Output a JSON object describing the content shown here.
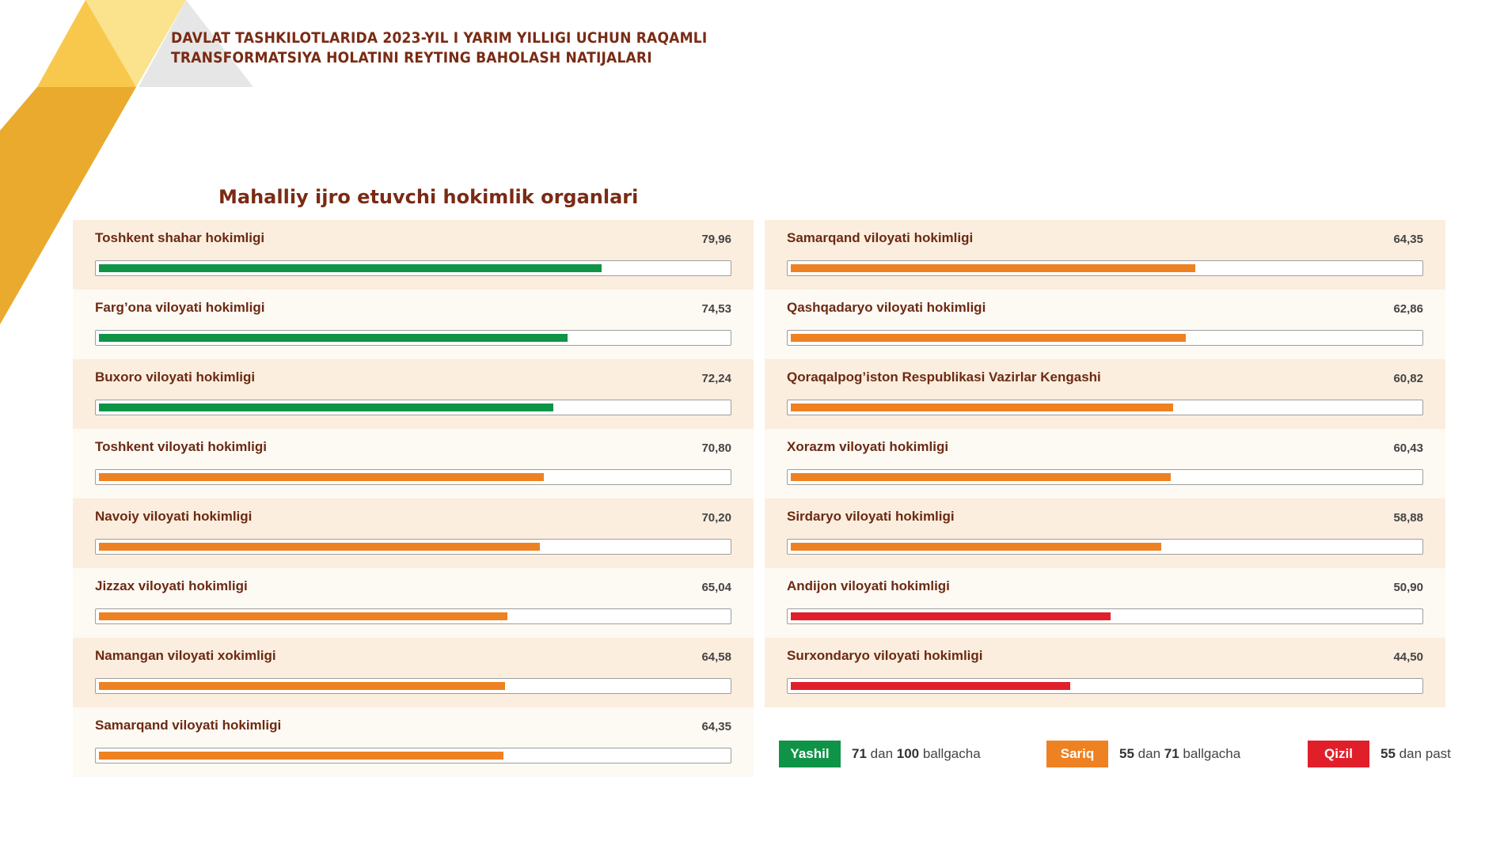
{
  "header": {
    "title_line1": "DAVLAT TASHKILOTLARIDA 2023-YIL I YARIM YILLIGI UCHUN RAQAMLI",
    "title_line2": "TRANSFORMATSIYA HOLATINI REYTING BAHOLASH NATIJALARI"
  },
  "colors": {
    "green": "#0f9447",
    "orange": "#ee8121",
    "red": "#e01f2b",
    "brand_dark": "#7a2b14",
    "gold": "#f3b73a"
  },
  "chart_data": {
    "type": "bar",
    "orientation": "horizontal",
    "title": "Mahalliy ijro etuvchi hokimlik organlari",
    "xlim": [
      0,
      100
    ],
    "categories": [
      "Toshkent shahar hokimligi",
      "Farg’ona viloyati hokimligi",
      "Buxoro viloyati hokimligi",
      "Toshkent viloyati hokimligi",
      "Navoiy viloyati hokimligi",
      "Jizzax viloyati hokimligi",
      "Namangan viloyati xokimligi",
      "Samarqand viloyati hokimligi",
      "Samarqand viloyati hokimligi",
      "Qashqadaryo viloyati hokimligi",
      "Qoraqalpog’iston Respublikasi Vazirlar Kengashi",
      "Xorazm viloyati hokimligi",
      "Sirdaryo viloyati hokimligi",
      "Andijon viloyati hokimligi",
      "Surxondaryo viloyati hokimligi"
    ],
    "values": [
      79.96,
      74.53,
      72.24,
      70.8,
      70.2,
      65.04,
      64.58,
      64.35,
      64.35,
      62.86,
      60.82,
      60.43,
      58.88,
      50.9,
      44.5
    ],
    "value_labels": [
      "79,96",
      "74,53",
      "72,24",
      "70,80",
      "70,20",
      "65,04",
      "64,58",
      "64,35",
      "64,35",
      "62,86",
      "60,82",
      "60,43",
      "58,88",
      "50,90",
      "44,50"
    ],
    "bar_colors": [
      "green",
      "green",
      "green",
      "orange",
      "orange",
      "orange",
      "orange",
      "orange",
      "orange",
      "orange",
      "orange",
      "orange",
      "orange",
      "red",
      "red"
    ],
    "columns": [
      {
        "start": 0,
        "count": 8
      },
      {
        "start": 8,
        "count": 7
      }
    ],
    "legend": [
      {
        "label": "Yashil",
        "color": "green",
        "from": "71",
        "to": "100",
        "word_dan": "dan",
        "word_unit": "ballgacha"
      },
      {
        "label": "Sariq",
        "color": "orange",
        "from": "55",
        "to": "71",
        "word_dan": "dan",
        "word_unit": "ballgacha"
      },
      {
        "label": "Qizil",
        "color": "red",
        "from": "55",
        "word_dan": "dan",
        "word_unit": "past"
      }
    ]
  }
}
